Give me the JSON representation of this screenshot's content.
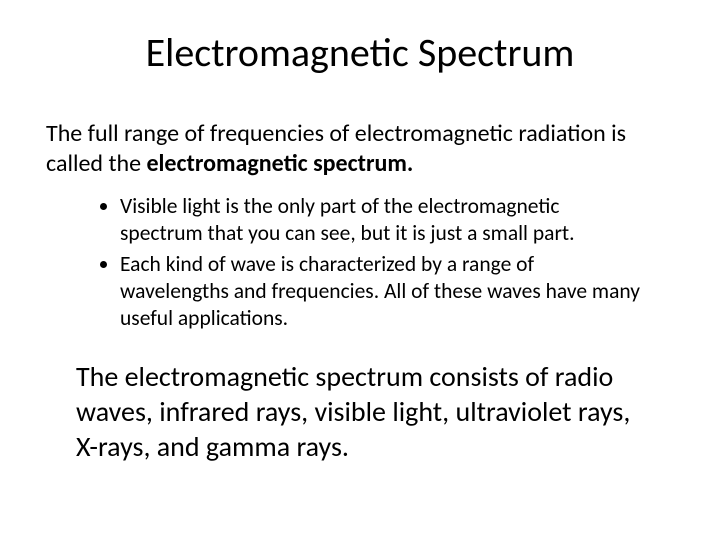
{
  "title": "Electromagnetic Spectrum",
  "intro_prefix": "The full range of frequencies of electromagnetic radiation is called the ",
  "intro_bold": "electromagnetic spectrum.",
  "bullets": [
    "Visible light is the only part of the electromagnetic spectrum that you can see, but it is just a small part.",
    "Each kind of wave is characterized by a range of wavelengths and frequencies. All of these waves have many useful applications."
  ],
  "closing": "The electromagnetic spectrum consists of radio waves, infrared rays, visible light, ultraviolet rays, X-rays, and gamma rays.",
  "colors": {
    "background": "#ffffff",
    "text": "#000000"
  },
  "fontsize": {
    "title": 40,
    "intro": 24,
    "bullet": 21.5,
    "closing": 28
  }
}
